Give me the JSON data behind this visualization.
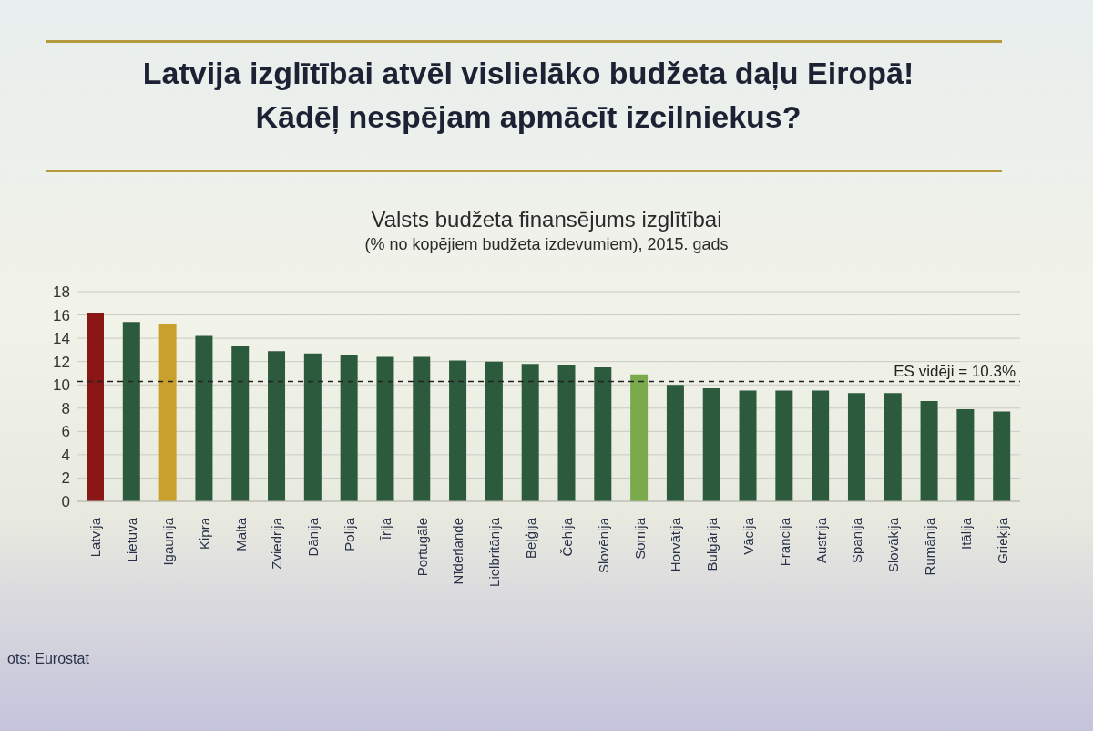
{
  "chart_data": {
    "type": "bar",
    "title": "Latvija izglītībai atvēl vislielāko budžeta daļu Eiropā!\nKādēļ nespējam apmācīt izcilniekus?",
    "subtitle": "Valsts budžeta finansējums izglītībai\n(% no kopējiem budžeta izdevumiem), 2015. gads",
    "categories": [
      "Latvija",
      "Lietuva",
      "Igaunija",
      "Kipra",
      "Malta",
      "Zviedrija",
      "Dānija",
      "Polija",
      "Īrija",
      "Portugāle",
      "Nīderlande",
      "Lielbritānija",
      "Beļģija",
      "Čehija",
      "Slovēnija",
      "Somija",
      "Horvātija",
      "Bulgārija",
      "Vācija",
      "Francija",
      "Austrija",
      "Spānija",
      "Slovākija",
      "Rumānija",
      "Itālija",
      "Grieķija"
    ],
    "values": [
      16.2,
      15.4,
      15.2,
      14.2,
      13.3,
      12.9,
      12.7,
      12.6,
      12.4,
      12.4,
      12.1,
      12.0,
      11.8,
      11.7,
      11.5,
      10.9,
      10.0,
      9.7,
      9.5,
      9.5,
      9.5,
      9.3,
      9.3,
      8.6,
      7.9,
      7.7
    ],
    "colors": [
      "#8a1616",
      "#2c5a3c",
      "#c9a02c",
      "#2c5a3c",
      "#2c5a3c",
      "#2c5a3c",
      "#2c5a3c",
      "#2c5a3c",
      "#2c5a3c",
      "#2c5a3c",
      "#2c5a3c",
      "#2c5a3c",
      "#2c5a3c",
      "#2c5a3c",
      "#2c5a3c",
      "#7aaa4c",
      "#2c5a3c",
      "#2c5a3c",
      "#2c5a3c",
      "#2c5a3c",
      "#2c5a3c",
      "#2c5a3c",
      "#2c5a3c",
      "#2c5a3c",
      "#2c5a3c",
      "#2c5a3c"
    ],
    "ylim": [
      0,
      18
    ],
    "yticks": [
      0,
      2,
      4,
      6,
      8,
      10,
      12,
      14,
      16,
      18
    ],
    "grid": "y",
    "ref_lines": [
      {
        "axis": "y",
        "value": 10.3,
        "label": "ES vidēji = 10.3%",
        "color": "#222222",
        "line_style": "dashed"
      }
    ],
    "annotations": [
      "ots: Eurostat"
    ]
  }
}
